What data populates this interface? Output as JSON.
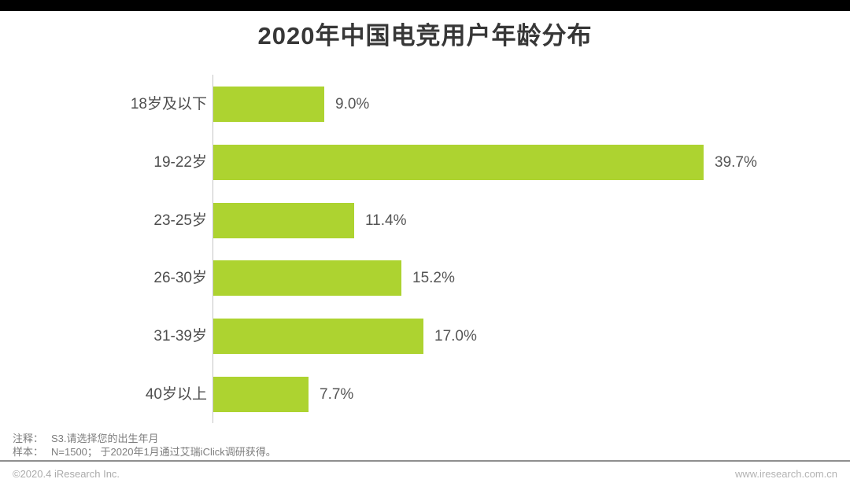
{
  "page": {
    "title": "2020年中国电竞用户年龄分布"
  },
  "chart_data": {
    "type": "bar",
    "orientation": "horizontal",
    "title": "2020年中国电竞用户年龄分布",
    "categories": [
      "18岁及以下",
      "19-22岁",
      "23-25岁",
      "26-30岁",
      "31-39岁",
      "40岁以上"
    ],
    "values": [
      9.0,
      39.7,
      11.4,
      15.2,
      17.0,
      7.7
    ],
    "value_labels": [
      "9.0%",
      "39.7%",
      "11.4%",
      "15.2%",
      "17.0%",
      "7.7%"
    ],
    "unit": "%",
    "xlim": [
      0,
      42
    ],
    "grid": false,
    "legend": false,
    "bar_color": "#add330",
    "axis_color": "#c6c6c6"
  },
  "notes": {
    "line1_label": "注释：",
    "line1_text": "S3.请选择您的出生年月",
    "line2_label": "样本：",
    "line2_text": "N=1500；  于2020年1月通过艾瑞iClick调研获得。"
  },
  "footer": {
    "copyright": "©2020.4 iResearch Inc.",
    "website": "www.iresearch.com.cn"
  },
  "colors": {
    "bar_green": "#add330",
    "title_text": "#373737",
    "label_text": "#4e4e4e",
    "value_text": "#555555",
    "note_text": "#7d7d7d",
    "footer_text": "#ababab",
    "top_bar": "#000000"
  }
}
